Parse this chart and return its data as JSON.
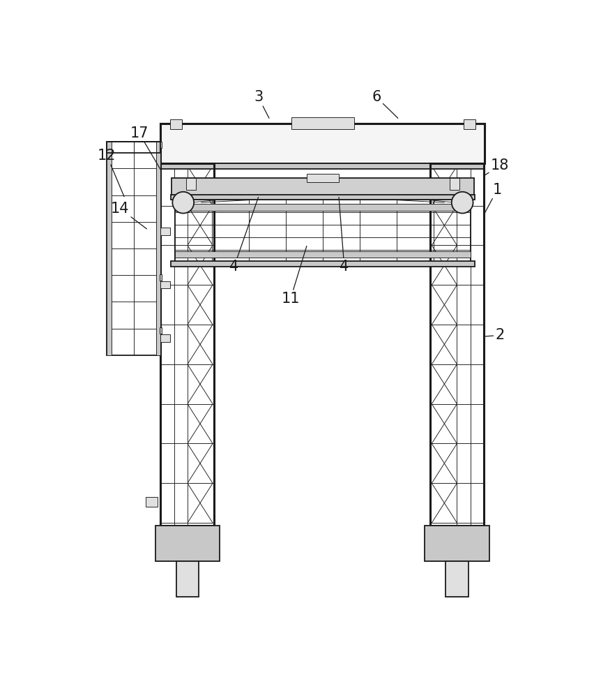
{
  "bg_color": "#ffffff",
  "lc": "#1a1a1a",
  "figsize": [
    8.53,
    10.0
  ],
  "dpi": 100,
  "lw_thick": 2.2,
  "lw_med": 1.3,
  "lw_thin": 0.65,
  "gray1": "#c8c8c8",
  "gray2": "#e0e0e0",
  "gray3": "#a8a8a8",
  "annotation_fs": 15
}
